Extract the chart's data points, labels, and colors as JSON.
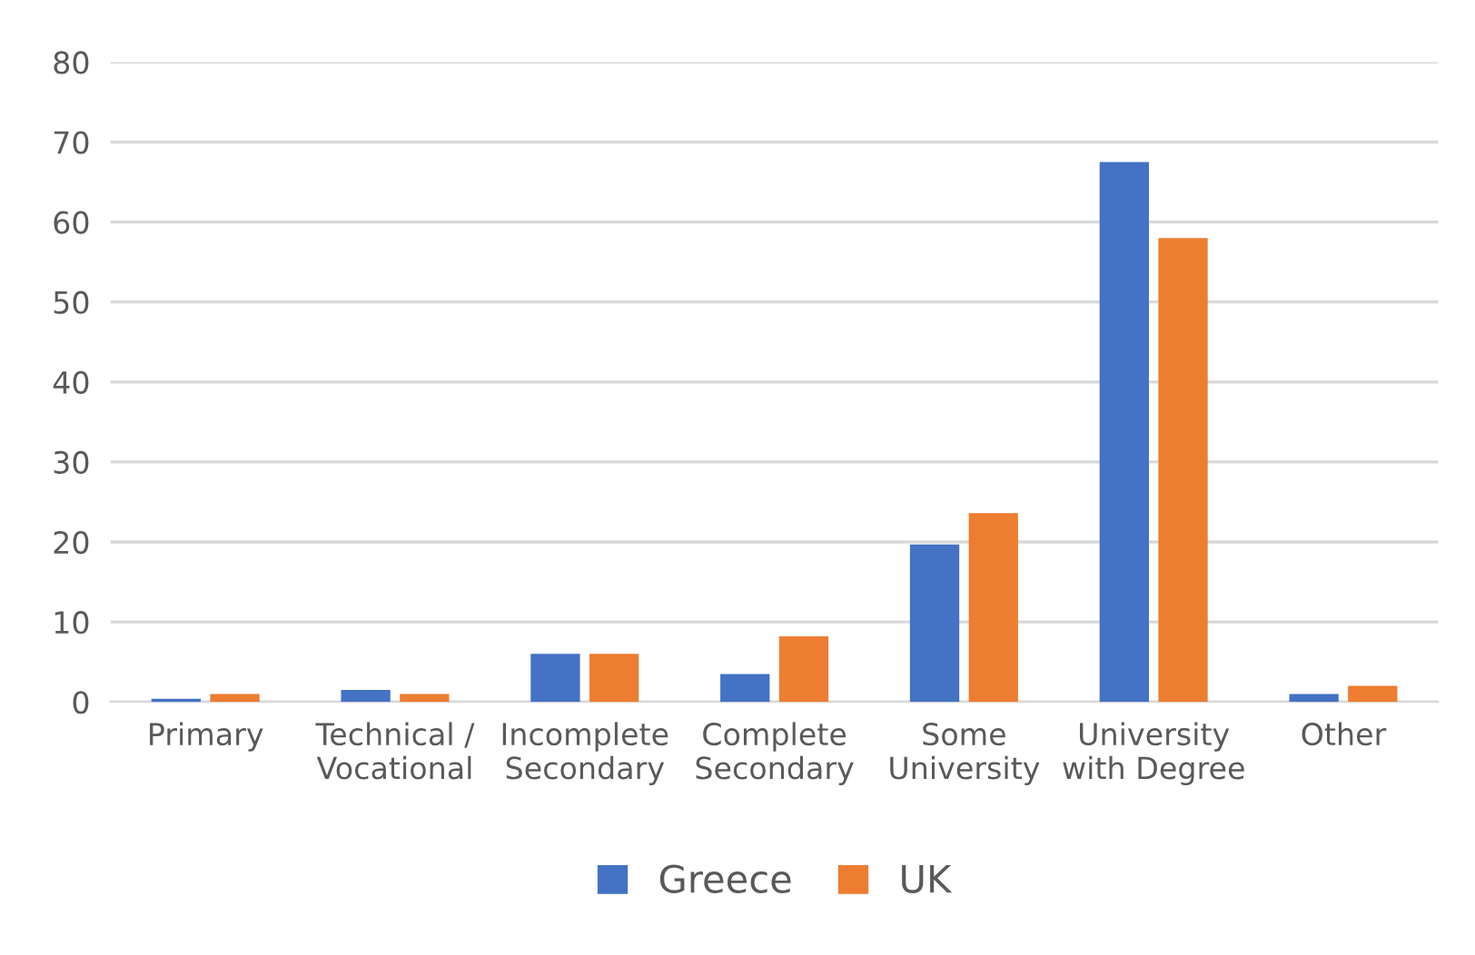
{
  "chart_data": {
    "type": "bar",
    "categories": [
      "Primary",
      "Technical /\nVocational",
      "Incomplete\nSecondary",
      "Complete\nSecondary",
      "Some\nUniversity",
      "University\nwith Degree",
      "Other"
    ],
    "series": [
      {
        "name": "Greece",
        "color": "#4472c4",
        "values": [
          0.4,
          1.5,
          6.0,
          3.5,
          19.7,
          67.5,
          1.0
        ]
      },
      {
        "name": "UK",
        "color": "#ed7d31",
        "values": [
          1.0,
          1.0,
          6.0,
          8.2,
          23.6,
          58.0,
          2.0
        ]
      }
    ],
    "ylim": [
      0,
      80
    ],
    "yticks": [
      0,
      10,
      20,
      30,
      40,
      50,
      60,
      70,
      80
    ],
    "grid": "y",
    "legend": "bottom"
  }
}
